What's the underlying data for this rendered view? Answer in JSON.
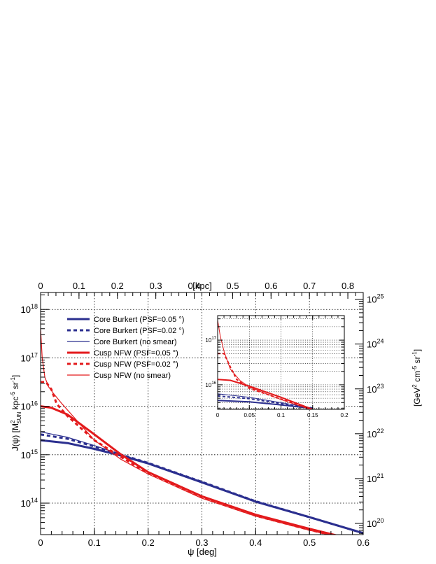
{
  "chart_data": [
    {
      "type": "line",
      "title": "",
      "xlabel": "ψ [deg]",
      "x2label": "[kpc]",
      "ylabel_main": "J(ψ) [M",
      "ylabel_sup": "2",
      "ylabel_sub": "SUN",
      "ylabel_tail1": " kpc",
      "ylabel_exp1": "-5",
      "ylabel_tail2": " sr",
      "ylabel_exp2": "-1",
      "ylabel_tail3": "]",
      "y2label_a": "[GeV",
      "y2label_sup1": "2",
      "y2label_b": " cm",
      "y2label_sup2": "-5",
      "y2label_c": " sr",
      "y2label_sup3": "-1",
      "y2label_d": "]",
      "xlim": [
        0,
        0.6
      ],
      "ylim_log10": [
        13.35,
        18.35
      ],
      "x2lim": [
        0,
        0.84
      ],
      "y2lim_log10": [
        19.75,
        25.15
      ],
      "yscale": "log",
      "grid": true,
      "legend_position": "top-left",
      "x_ticks": [
        {
          "v": 0,
          "label": "0"
        },
        {
          "v": 0.1,
          "label": "0.1"
        },
        {
          "v": 0.2,
          "label": "0.2"
        },
        {
          "v": 0.3,
          "label": "0.3"
        },
        {
          "v": 0.4,
          "label": "0.4"
        },
        {
          "v": 0.5,
          "label": "0.5"
        },
        {
          "v": 0.6,
          "label": "0.6"
        }
      ],
      "x2_ticks": [
        {
          "v": 0,
          "label": "0"
        },
        {
          "v": 0.1,
          "label": "0.1"
        },
        {
          "v": 0.2,
          "label": "0.2"
        },
        {
          "v": 0.3,
          "label": "0.3"
        },
        {
          "v": 0.4,
          "label": "0.4"
        },
        {
          "v": 0.5,
          "label": "0.5"
        },
        {
          "v": 0.6,
          "label": "0.6"
        },
        {
          "v": 0.7,
          "label": "0.7"
        },
        {
          "v": 0.8,
          "label": "0.8"
        }
      ],
      "y_ticks": [
        {
          "e": 14,
          "label": "10",
          "sup": "14"
        },
        {
          "e": 15,
          "label": "10",
          "sup": "15"
        },
        {
          "e": 16,
          "label": "10",
          "sup": "16"
        },
        {
          "e": 17,
          "label": "10",
          "sup": "17"
        },
        {
          "e": 18,
          "label": "10",
          "sup": "18"
        }
      ],
      "y2_ticks": [
        {
          "e": 20,
          "label": "10",
          "sup": "20"
        },
        {
          "e": 21,
          "label": "10",
          "sup": "21"
        },
        {
          "e": 22,
          "label": "10",
          "sup": "22"
        },
        {
          "e": 23,
          "label": "10",
          "sup": "23"
        },
        {
          "e": 24,
          "label": "10",
          "sup": "24"
        },
        {
          "e": 25,
          "label": "10",
          "sup": "25"
        }
      ],
      "series": [
        {
          "name": "Core Burkert (PSF=0.05 °)",
          "color": "#2b2f8f",
          "width": 3,
          "dash": "",
          "x": [
            0,
            0.05,
            0.1,
            0.15,
            0.2,
            0.3,
            0.4,
            0.5,
            0.6
          ],
          "log10y": [
            15.3,
            15.24,
            15.12,
            14.98,
            14.82,
            14.43,
            14.03,
            13.71,
            13.38
          ]
        },
        {
          "name": "Core Burkert (PSF=0.02 °)",
          "color": "#2b2f8f",
          "width": 3,
          "dash": "5,4",
          "x": [
            0,
            0.05,
            0.1,
            0.15,
            0.2,
            0.3,
            0.4,
            0.5,
            0.6
          ],
          "log10y": [
            15.42,
            15.33,
            15.17,
            15.0,
            14.83,
            14.44,
            14.04,
            13.71,
            13.38
          ]
        },
        {
          "name": "Core Burkert (no smear)",
          "color": "#2b2f8f",
          "width": 1.2,
          "dash": "",
          "x": [
            0,
            0.01,
            0.05,
            0.1,
            0.15,
            0.2,
            0.3,
            0.4,
            0.5,
            0.6
          ],
          "log10y": [
            15.47,
            15.45,
            15.36,
            15.19,
            15.0,
            14.83,
            14.44,
            14.04,
            13.71,
            13.38
          ]
        },
        {
          "name": "Cusp NFW (PSF=0.05 °)",
          "color": "#e31a1c",
          "width": 3,
          "dash": "",
          "x": [
            0,
            0.02,
            0.05,
            0.1,
            0.15,
            0.2,
            0.3,
            0.4,
            0.5,
            0.6
          ],
          "log10y": [
            16.0,
            15.97,
            15.83,
            15.42,
            15.0,
            14.64,
            14.14,
            13.76,
            13.47,
            13.2
          ]
        },
        {
          "name": "Cusp NFW (PSF=0.02 °)",
          "color": "#e31a1c",
          "width": 3,
          "dash": "5,4",
          "x": [
            0,
            0.01,
            0.02,
            0.03,
            0.05,
            0.1,
            0.15,
            0.2,
            0.3,
            0.4,
            0.5,
            0.6
          ],
          "log10y": [
            16.5,
            16.5,
            16.35,
            16.05,
            15.8,
            15.3,
            14.95,
            14.62,
            14.12,
            13.74,
            13.45,
            13.18
          ]
        },
        {
          "name": "Cusp NFW (no smear)",
          "color": "#e31a1c",
          "width": 1.2,
          "dash": "",
          "x": [
            0,
            0.003,
            0.008,
            0.015,
            0.025,
            0.04,
            0.06,
            0.1,
            0.15,
            0.2,
            0.3,
            0.4,
            0.5,
            0.6
          ],
          "log10y": [
            17.6,
            17.0,
            16.6,
            16.4,
            16.25,
            16.05,
            15.8,
            15.3,
            14.9,
            14.6,
            14.1,
            13.73,
            13.44,
            13.18
          ]
        }
      ]
    },
    {
      "type": "line",
      "title": "",
      "xlim": [
        0,
        0.2
      ],
      "ylim_log10": [
        15.45,
        17.55
      ],
      "yscale": "log",
      "grid": true,
      "x_ticks": [
        {
          "v": 0,
          "label": "0"
        },
        {
          "v": 0.05,
          "label": "0.05"
        },
        {
          "v": 0.1,
          "label": "0.1"
        },
        {
          "v": 0.15,
          "label": "0.15"
        },
        {
          "v": 0.2,
          "label": "0.2"
        }
      ],
      "y_ticks": [
        {
          "e": 16,
          "label": "10",
          "sup": "16"
        },
        {
          "e": 17,
          "label": "10",
          "sup": "17"
        }
      ],
      "series": [
        {
          "color": "#2b2f8f",
          "width": 2,
          "dash": "",
          "x": [
            0,
            0.05,
            0.1,
            0.15
          ],
          "log10y": [
            15.65,
            15.62,
            15.55,
            15.47
          ]
        },
        {
          "color": "#2b2f8f",
          "width": 2,
          "dash": "4,3",
          "x": [
            0,
            0.05,
            0.1,
            0.15
          ],
          "log10y": [
            15.75,
            15.69,
            15.58,
            15.48
          ]
        },
        {
          "color": "#2b2f8f",
          "width": 1,
          "dash": "",
          "x": [
            0,
            0.05,
            0.1,
            0.15
          ],
          "log10y": [
            15.8,
            15.72,
            15.6,
            15.48
          ]
        },
        {
          "color": "#e31a1c",
          "width": 2,
          "dash": "",
          "x": [
            0,
            0.02,
            0.05,
            0.1,
            0.15
          ],
          "log10y": [
            16.12,
            16.1,
            15.97,
            15.72,
            15.45
          ]
        },
        {
          "color": "#e31a1c",
          "width": 2,
          "dash": "4,3",
          "x": [
            0,
            0.01,
            0.02,
            0.03,
            0.05,
            0.1,
            0.15
          ],
          "log10y": [
            16.7,
            16.7,
            16.4,
            16.12,
            15.92,
            15.68,
            15.44
          ]
        },
        {
          "color": "#e31a1c",
          "width": 1,
          "dash": "",
          "x": [
            0,
            0.004,
            0.01,
            0.02,
            0.035,
            0.05,
            0.1,
            0.15
          ],
          "log10y": [
            17.45,
            17.1,
            16.75,
            16.35,
            16.1,
            15.95,
            15.67,
            15.43
          ]
        }
      ]
    }
  ]
}
